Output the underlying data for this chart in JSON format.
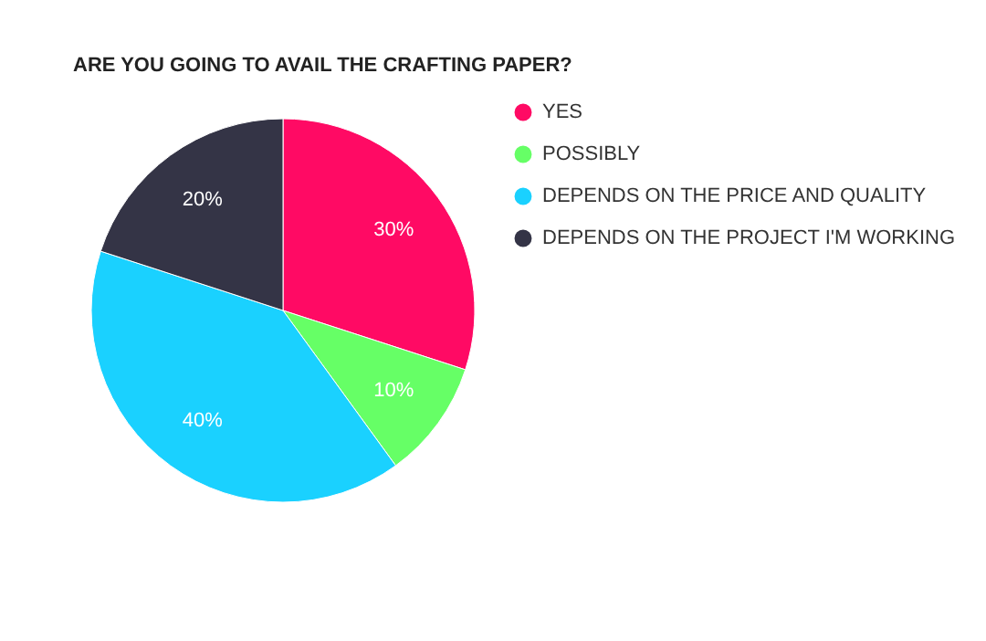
{
  "chart_data": {
    "type": "pie",
    "title": "ARE YOU GOING TO AVAIL THE CRAFTING PAPER?",
    "categories": [
      "YES",
      "POSSIBLY",
      "DEPENDS ON THE PRICE AND QUALITY",
      "DEPENDS ON THE PROJECT I'M WORKING"
    ],
    "values": [
      30,
      10,
      40,
      20
    ],
    "colors": [
      "#ff0a64",
      "#66ff66",
      "#1ad1ff",
      "#343446"
    ],
    "value_labels": [
      "30%",
      "10%",
      "40%",
      "20%"
    ],
    "legend": "right"
  }
}
